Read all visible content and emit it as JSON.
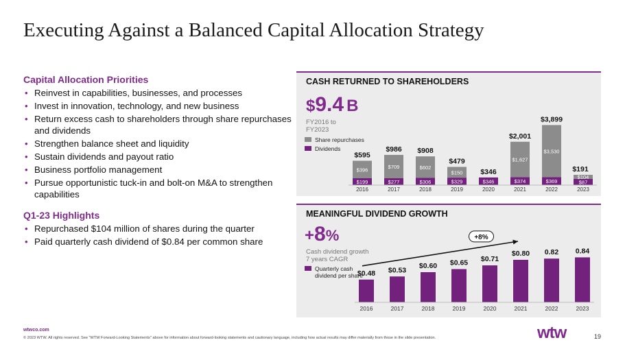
{
  "title": "Executing Against a Balanced Capital Allocation Strategy",
  "priorities": {
    "heading": "Capital Allocation Priorities",
    "items": [
      "Reinvest in capabilities, businesses, and processes",
      "Invest in innovation, technology, and new business",
      "Return excess cash to shareholders through share repurchases and dividends",
      "Strengthen balance sheet and liquidity",
      "Sustain dividends and payout ratio",
      "Business portfolio management",
      "Pursue opportunistic tuck-in and bolt-on M&A to strengthen capabilities"
    ]
  },
  "highlights": {
    "heading": "Q1-23 Highlights",
    "items": [
      "Repurchased $104 million of shares during the quarter",
      "Paid quarterly cash dividend of $0.84 per common share"
    ]
  },
  "cash_panel": {
    "heading": "CASH RETURNED TO SHAREHOLDERS",
    "big_prefix": "$",
    "big_value": "9.4",
    "big_suffix": "B",
    "note_line1": "FY2016 to",
    "note_line2": "FY2023"
  },
  "dividend_panel": {
    "heading": "MEANINGFUL DIVIDEND GROWTH",
    "big_prefix": "+",
    "big_value": "8",
    "big_suffix": "%",
    "note_line1": "Cash dividend growth",
    "note_line2": "7 years CAGR",
    "arrow_label": "+8%"
  },
  "colors": {
    "purple": "#72217d",
    "gray": "#8c8c8c",
    "panel": "#ececec",
    "accent": "#7f2a8c"
  },
  "chart_data": [
    {
      "type": "bar",
      "stacked": true,
      "categories": [
        "2016",
        "2017",
        "2018",
        "2019",
        "2020",
        "2021",
        "2022",
        "2023"
      ],
      "series": [
        {
          "name": "Dividends",
          "values": [
            199,
            277,
            306,
            329,
            346,
            374,
            369,
            87
          ],
          "labels": [
            "$199",
            "$277",
            "$306",
            "$329",
            "$346",
            "$374",
            "$369",
            "$87"
          ]
        },
        {
          "name": "Share repurchases",
          "values": [
            396,
            709,
            602,
            150,
            0,
            1627,
            3530,
            104
          ],
          "labels": [
            "$396",
            "$709",
            "$602",
            "$150",
            "",
            "$1,627",
            "$3,530",
            "$104"
          ]
        }
      ],
      "totals": [
        "$595",
        "$986",
        "$908",
        "$479",
        "$346",
        "$2,001",
        "$3,899",
        "$191"
      ]
    },
    {
      "type": "bar",
      "categories": [
        "2016",
        "2017",
        "2018",
        "2019",
        "2020",
        "2021",
        "2022",
        "2023"
      ],
      "series": [
        {
          "name": "Quarterly cash dividend per share",
          "values": [
            0.48,
            0.53,
            0.6,
            0.65,
            0.71,
            0.8,
            0.82,
            0.84
          ],
          "labels": [
            "$0.48",
            "$0.53",
            "$0.60",
            "$0.65",
            "$0.71",
            "$0.80",
            "0.82",
            "0.84"
          ]
        }
      ]
    }
  ],
  "footer": {
    "website": "wtwco.com",
    "disclaimer": "© 2023 WTW. All rights reserved. See \"WTW Forward-Looking Statements\" above for information about forward-looking statements and cautionary language, including how actual results may differ materially from those in the slide presentation.",
    "logo": "wtw",
    "page": "19"
  }
}
